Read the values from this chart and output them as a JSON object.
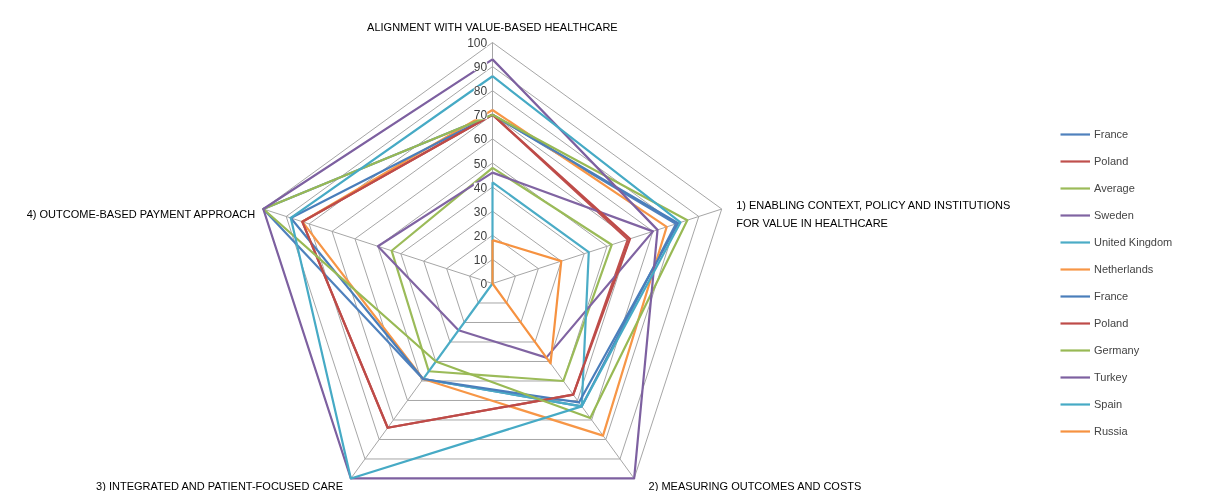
{
  "chart_data": {
    "type": "radar",
    "categories": [
      "ALIGNMENT WITH VALUE-BASED HEALTHCARE",
      "1) ENABLING CONTEXT, POLICY AND INSTITUTIONS\nFOR VALUE IN HEALTHCARE",
      "2) MEASURING OUTCOMES AND COSTS",
      "3) INTEGRATED AND PATIENT-FOCUSED CARE",
      "4) OUTCOME-BASED PAYMENT APPROACH"
    ],
    "ylim": [
      0,
      100
    ],
    "yticks": [
      0,
      10,
      20,
      30,
      40,
      50,
      60,
      70,
      80,
      90,
      100
    ],
    "grid": true,
    "legend": "right",
    "series": [
      {
        "name": "France",
        "color": "#4f81bd",
        "values": [
          70,
          80,
          63,
          49,
          100
        ]
      },
      {
        "name": "Poland",
        "color": "#c0504d",
        "values": [
          70,
          59,
          57,
          74,
          83
        ]
      },
      {
        "name": "Average",
        "color": "#9bbb59",
        "values": [
          48,
          52,
          50,
          45,
          44
        ]
      },
      {
        "name": "Sweden",
        "color": "#8064a2",
        "values": [
          46,
          70,
          38,
          24,
          50
        ]
      },
      {
        "name": "United Kingdom",
        "color": "#4bacc6",
        "values": [
          42,
          42,
          63,
          49,
          0
        ]
      },
      {
        "name": "Netherlands",
        "color": "#f79646",
        "values": [
          72,
          76,
          78,
          49,
          83
        ]
      },
      {
        "name": "France",
        "color": "#4a7ebb",
        "values": [
          70,
          81,
          61,
          49,
          88
        ]
      },
      {
        "name": "Poland",
        "color": "#be4b48",
        "values": [
          70,
          60,
          57,
          74,
          83
        ]
      },
      {
        "name": "Germany",
        "color": "#98b954",
        "values": [
          70,
          85,
          69,
          40,
          100
        ]
      },
      {
        "name": "Turkey",
        "color": "#7d60a0",
        "values": [
          93,
          72,
          100,
          100,
          100
        ]
      },
      {
        "name": "Spain",
        "color": "#46aac5",
        "values": [
          86,
          82,
          63,
          100,
          88
        ]
      },
      {
        "name": "Russia",
        "color": "#f69240",
        "values": [
          18,
          30,
          41,
          0,
          0
        ]
      }
    ]
  }
}
